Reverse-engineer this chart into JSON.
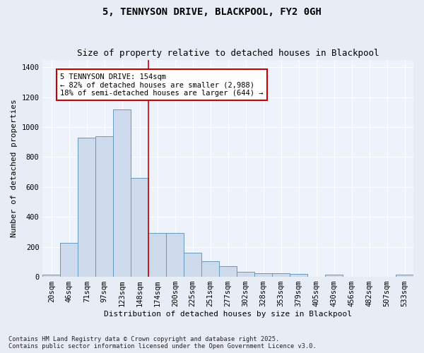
{
  "title": "5, TENNYSON DRIVE, BLACKPOOL, FY2 0GH",
  "subtitle": "Size of property relative to detached houses in Blackpool",
  "xlabel": "Distribution of detached houses by size in Blackpool",
  "ylabel": "Number of detached properties",
  "categories": [
    "20sqm",
    "46sqm",
    "71sqm",
    "97sqm",
    "123sqm",
    "148sqm",
    "174sqm",
    "200sqm",
    "225sqm",
    "251sqm",
    "277sqm",
    "302sqm",
    "328sqm",
    "353sqm",
    "379sqm",
    "405sqm",
    "430sqm",
    "456sqm",
    "482sqm",
    "507sqm",
    "533sqm"
  ],
  "values": [
    15,
    228,
    930,
    940,
    1120,
    660,
    295,
    295,
    160,
    105,
    70,
    35,
    25,
    22,
    18,
    0,
    15,
    0,
    0,
    0,
    13
  ],
  "bar_color": "#cddaec",
  "bar_edge_color": "#6699bb",
  "vline_color": "#cc0000",
  "annotation_text": "5 TENNYSON DRIVE: 154sqm\n← 82% of detached houses are smaller (2,988)\n18% of semi-detached houses are larger (644) →",
  "annotation_box_color": "#ffffff",
  "annotation_box_edge": "#cc0000",
  "ylim": [
    0,
    1450
  ],
  "yticks": [
    0,
    200,
    400,
    600,
    800,
    1000,
    1200,
    1400
  ],
  "footnote": "Contains HM Land Registry data © Crown copyright and database right 2025.\nContains public sector information licensed under the Open Government Licence v3.0.",
  "bg_color": "#e8ecf5",
  "plot_bg_color": "#eef2fa",
  "grid_color": "#ffffff",
  "title_fontsize": 10,
  "subtitle_fontsize": 9,
  "axis_label_fontsize": 8,
  "tick_fontsize": 7.5
}
